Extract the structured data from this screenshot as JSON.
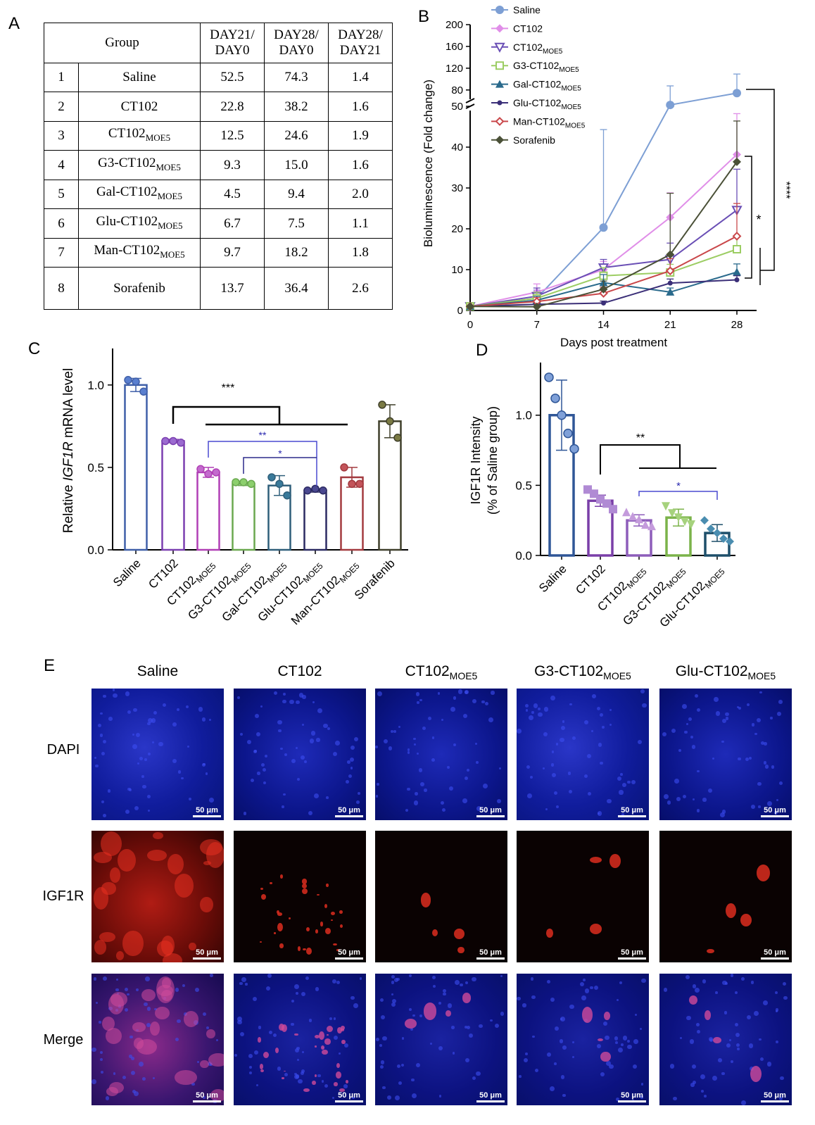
{
  "panels": {
    "a": "A",
    "b": "B",
    "c": "C",
    "d": "D",
    "e": "E"
  },
  "table": {
    "headers": {
      "group": "Group",
      "c1a": "DAY21/",
      "c1b": "DAY0",
      "c2a": "DAY28/",
      "c2b": "DAY0",
      "c3a": "DAY28/",
      "c3b": "DAY21"
    },
    "rows": [
      {
        "n": "1",
        "base": "Saline",
        "sub": "",
        "v1": "52.5",
        "v2": "74.3",
        "v3": "1.4"
      },
      {
        "n": "2",
        "base": "CT102",
        "sub": "",
        "v1": "22.8",
        "v2": "38.2",
        "v3": "1.6"
      },
      {
        "n": "3",
        "base": "CT102",
        "sub": "MOE5",
        "v1": "12.5",
        "v2": "24.6",
        "v3": "1.9"
      },
      {
        "n": "4",
        "base": "G3-CT102",
        "sub": "MOE5",
        "v1": "9.3",
        "v2": "15.0",
        "v3": "1.6"
      },
      {
        "n": "5",
        "base": "Gal-CT102",
        "sub": "MOE5",
        "v1": "4.5",
        "v2": "9.4",
        "v3": "2.0"
      },
      {
        "n": "6",
        "base": "Glu-CT102",
        "sub": "MOE5",
        "v1": "6.7",
        "v2": "7.5",
        "v3": "1.1"
      },
      {
        "n": "7",
        "base": "Man-CT102",
        "sub": "MOE5",
        "v1": "9.7",
        "v2": "18.2",
        "v3": "1.8"
      },
      {
        "n": "8",
        "base": "Sorafenib",
        "sub": "",
        "v1": "13.7",
        "v2": "36.4",
        "v3": "2.6"
      }
    ]
  },
  "chart_data": [
    {
      "id": "B",
      "type": "line",
      "xlabel": "Days post treatment",
      "ylabel": "Bioluminescence (Fold change)",
      "x": [
        0,
        7,
        14,
        21,
        28
      ],
      "yticks_lower": [
        0,
        10,
        20,
        30,
        40,
        50
      ],
      "yticks_upper": [
        80,
        120,
        160,
        200
      ],
      "ylim_lower": [
        0,
        50
      ],
      "ylim_upper": [
        50,
        200
      ],
      "broken_axis": true,
      "series": [
        {
          "name": "Saline",
          "sub": "",
          "color": "#7d9fd4",
          "marker": "circle",
          "values": [
            1,
            3,
            20.3,
            52.5,
            74.3
          ],
          "err": [
            0,
            2,
            24,
            35,
            35
          ]
        },
        {
          "name": "CT102",
          "sub": "",
          "color": "#e08ee8",
          "marker": "diamond",
          "values": [
            1,
            4.5,
            10,
            22.8,
            38.2
          ],
          "err": [
            0,
            2,
            2,
            6,
            10
          ]
        },
        {
          "name": "CT102",
          "sub": "MOE5",
          "color": "#6a4fb5",
          "marker": "tri-down",
          "values": [
            1,
            3.5,
            10.5,
            12.5,
            24.6
          ],
          "err": [
            0,
            2,
            2,
            4,
            10
          ]
        },
        {
          "name": "G3-CT102",
          "sub": "MOE5",
          "color": "#9ccd63",
          "marker": "square",
          "values": [
            1,
            3,
            8.5,
            9.3,
            15.0
          ],
          "err": [
            0,
            1.5,
            2,
            2,
            3
          ]
        },
        {
          "name": "Gal-CT102",
          "sub": "MOE5",
          "color": "#2a6a8c",
          "marker": "tri-up",
          "values": [
            1,
            2.5,
            6.8,
            4.5,
            9.4
          ],
          "err": [
            0,
            1,
            2,
            1,
            2
          ]
        },
        {
          "name": "Glu-CT102",
          "sub": "MOE5",
          "color": "#3b2f78",
          "marker": "small-circle",
          "values": [
            1,
            1.5,
            1.8,
            6.7,
            7.5
          ],
          "err": [
            0,
            0.5,
            0.5,
            1,
            1
          ]
        },
        {
          "name": "Man-CT102",
          "sub": "MOE5",
          "color": "#c9474a",
          "marker": "small-diamond",
          "values": [
            1,
            2.2,
            4.2,
            9.7,
            18.2
          ],
          "err": [
            0,
            1,
            1.5,
            3,
            8
          ]
        },
        {
          "name": "Sorafenib",
          "sub": "",
          "color": "#4a5037",
          "marker": "diamond",
          "values": [
            1,
            0.9,
            5.2,
            13.7,
            36.4
          ],
          "err": [
            0,
            0.5,
            2,
            15,
            10
          ]
        }
      ],
      "annotations": [
        "****",
        "*"
      ]
    },
    {
      "id": "C",
      "type": "bar",
      "ylabel_pre": "Relative ",
      "ylabel_it": "IGF1R",
      "ylabel_post": " mRNA level",
      "ylim": [
        0,
        1.2
      ],
      "yticks": [
        "0.0",
        "0.5",
        "1.0"
      ],
      "categories": [
        {
          "base": "Saline",
          "sub": ""
        },
        {
          "base": "CT102",
          "sub": ""
        },
        {
          "base": "CT102",
          "sub": "MOE5"
        },
        {
          "base": "G3-CT102",
          "sub": "MOE5"
        },
        {
          "base": "Gal-CT102",
          "sub": "MOE5"
        },
        {
          "base": "Glu-CT102",
          "sub": "MOE5"
        },
        {
          "base": "Man-CT102",
          "sub": "MOE5"
        },
        {
          "base": "Sorafenib",
          "sub": ""
        }
      ],
      "colors": [
        "#3f5fa8",
        "#7b3fb0",
        "#b03fb5",
        "#6aa84f",
        "#2f5f7a",
        "#2b2a62",
        "#a33a3f",
        "#3f3f2a"
      ],
      "point_colors": [
        "#5a7fcf",
        "#9b6ad0",
        "#c36acd",
        "#8ccf6d",
        "#3a7a9a",
        "#4a4890",
        "#c3545a",
        "#7a7a44"
      ],
      "values": [
        1.0,
        0.66,
        0.47,
        0.4,
        0.39,
        0.36,
        0.44,
        0.78
      ],
      "err": [
        0.04,
        0.01,
        0.03,
        0.01,
        0.06,
        0.01,
        0.06,
        0.1
      ],
      "points": [
        [
          1.03,
          1.02,
          0.96
        ],
        [
          0.66,
          0.66,
          0.65
        ],
        [
          0.49,
          0.46,
          0.47
        ],
        [
          0.41,
          0.41,
          0.4
        ],
        [
          0.44,
          0.4,
          0.33
        ],
        [
          0.36,
          0.37,
          0.36
        ],
        [
          0.5,
          0.4,
          0.4
        ],
        [
          0.88,
          0.78,
          0.68
        ]
      ],
      "annotations": [
        "***",
        "**",
        "*"
      ]
    },
    {
      "id": "D",
      "type": "bar",
      "ylabel1": "IGF1R Intensity",
      "ylabel2": "(% of Saline group)",
      "ylim": [
        0,
        1.35
      ],
      "yticks": [
        "0.0",
        "0.5",
        "1.0"
      ],
      "categories": [
        {
          "base": "Saline",
          "sub": ""
        },
        {
          "base": "CT102",
          "sub": ""
        },
        {
          "base": "CT102",
          "sub": "MOE5"
        },
        {
          "base": "G3-CT102",
          "sub": "MOE5"
        },
        {
          "base": "Glu-CT102",
          "sub": "MOE5"
        }
      ],
      "colors": [
        "#2f5697",
        "#7a3fa8",
        "#8d5dba",
        "#7bb34a",
        "#1e4f6a"
      ],
      "point_colors": [
        "#7fa0d8",
        "#b08ad4",
        "#c49bdc",
        "#a6d27d",
        "#4a8db0"
      ],
      "values": [
        1.0,
        0.39,
        0.25,
        0.27,
        0.16
      ],
      "err": [
        0.25,
        0.04,
        0.04,
        0.06,
        0.06
      ],
      "points": [
        [
          1.27,
          1.12,
          1.0,
          0.87,
          0.76
        ],
        [
          0.47,
          0.44,
          0.4,
          0.37,
          0.33
        ],
        [
          0.31,
          0.28,
          0.26,
          0.22,
          0.21
        ],
        [
          0.35,
          0.3,
          0.27,
          0.24,
          0.22
        ],
        [
          0.25,
          0.19,
          0.16,
          0.12,
          0.1
        ]
      ],
      "annotations": [
        "**",
        "*"
      ]
    }
  ],
  "panelE": {
    "cols": [
      {
        "base": "Saline",
        "sub": ""
      },
      {
        "base": "CT102",
        "sub": ""
      },
      {
        "base": "CT102",
        "sub": "MOE5"
      },
      {
        "base": "G3-CT102",
        "sub": "MOE5"
      },
      {
        "base": "Glu-CT102",
        "sub": "MOE5"
      }
    ],
    "rows": [
      "DAPI",
      "IGF1R",
      "Merge"
    ],
    "scale_bar": "50 μm",
    "colors": {
      "dapi": "#0a1a8c",
      "igf1r": "#e0241c",
      "merge_bg": "#1a0a4a"
    }
  }
}
